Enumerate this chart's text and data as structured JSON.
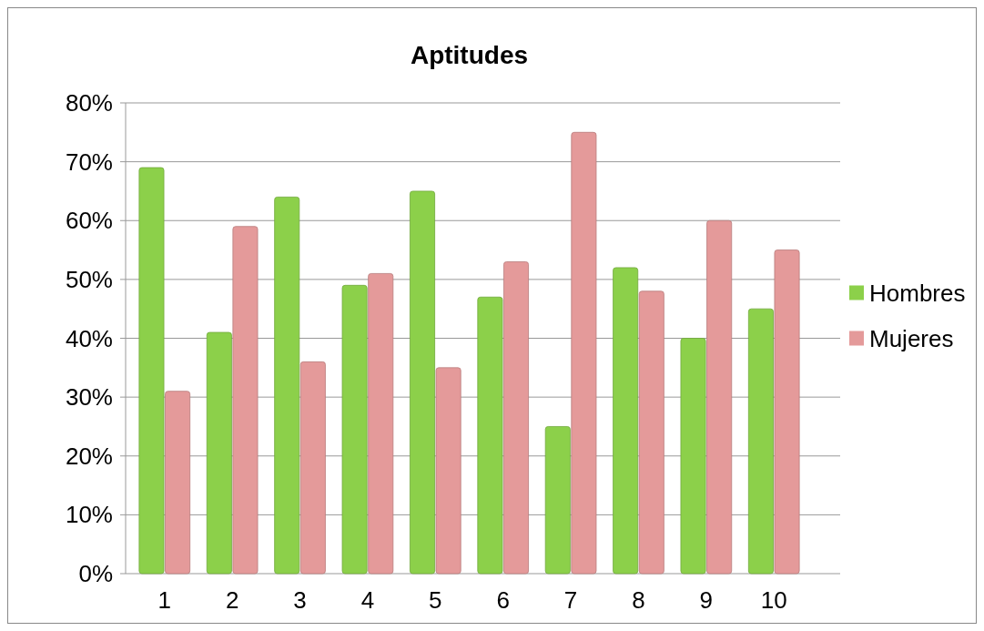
{
  "chart_data": {
    "type": "bar",
    "title": "Aptitudes",
    "categories": [
      "1",
      "2",
      "3",
      "4",
      "5",
      "6",
      "7",
      "8",
      "9",
      "10"
    ],
    "series": [
      {
        "name": "Hombres",
        "color": "#8cd04a",
        "values": [
          0.69,
          0.41,
          0.64,
          0.49,
          0.65,
          0.47,
          0.25,
          0.52,
          0.4,
          0.45
        ]
      },
      {
        "name": "Mujeres",
        "color": "#e49a9a",
        "values": [
          0.31,
          0.59,
          0.36,
          0.51,
          0.35,
          0.53,
          0.75,
          0.48,
          0.6,
          0.55
        ]
      }
    ],
    "ylim": [
      0,
      0.8
    ],
    "yticks": [
      {
        "value": 0,
        "label": "0%"
      },
      {
        "value": 0.1,
        "label": "10%"
      },
      {
        "value": 0.2,
        "label": "20%"
      },
      {
        "value": 0.3,
        "label": "30%"
      },
      {
        "value": 0.4,
        "label": "40%"
      },
      {
        "value": 0.5,
        "label": "50%"
      },
      {
        "value": 0.6,
        "label": "60%"
      },
      {
        "value": 0.7,
        "label": "70%"
      },
      {
        "value": 0.8,
        "label": "80%"
      }
    ],
    "grid": "y",
    "legend": "right"
  }
}
